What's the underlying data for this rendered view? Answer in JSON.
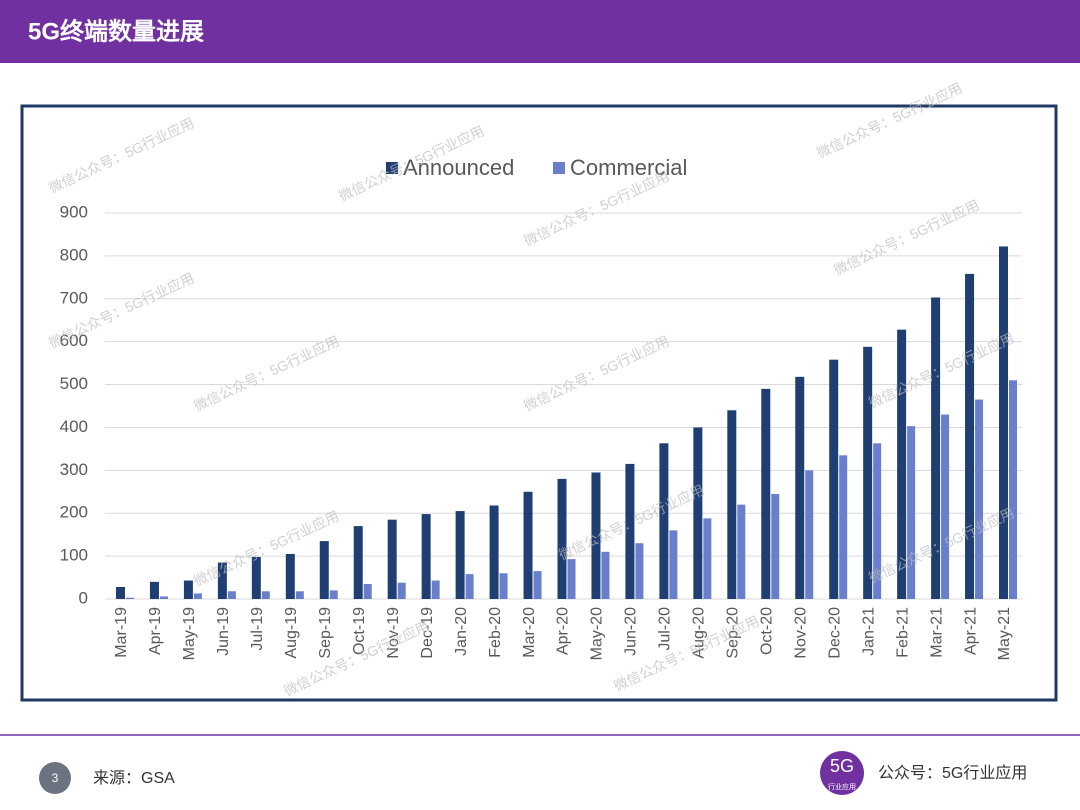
{
  "header": {
    "title": "5G终端数量进展"
  },
  "footer": {
    "page": "3",
    "source": "来源：GSA",
    "logo_big": "5G",
    "logo_small": "行业应用",
    "account": "公众号：5G行业应用"
  },
  "watermark": "微信公众号：5G行业应用",
  "chart_data": {
    "type": "bar",
    "categories": [
      "Mar-19",
      "Apr-19",
      "May-19",
      "Jun-19",
      "Jul-19",
      "Aug-19",
      "Sep-19",
      "Oct-19",
      "Nov-19",
      "Dec-19",
      "Jan-20",
      "Feb-20",
      "Mar-20",
      "Apr-20",
      "May-20",
      "Jun-20",
      "Jul-20",
      "Aug-20",
      "Sep-20",
      "Oct-20",
      "Nov-20",
      "Dec-20",
      "Jan-21",
      "Feb-21",
      "Mar-21",
      "Apr-21",
      "May-21"
    ],
    "series": [
      {
        "name": "Announced",
        "color": "#1f3f73",
        "values": [
          28,
          40,
          43,
          85,
          98,
          105,
          135,
          170,
          185,
          198,
          205,
          218,
          250,
          280,
          295,
          315,
          363,
          400,
          440,
          490,
          518,
          558,
          588,
          628,
          703,
          758,
          822
        ]
      },
      {
        "name": "Commercial",
        "color": "#6a7fcc",
        "values": [
          3,
          6,
          13,
          18,
          18,
          18,
          20,
          35,
          38,
          43,
          58,
          60,
          65,
          93,
          110,
          130,
          160,
          188,
          220,
          245,
          300,
          335,
          363,
          403,
          430,
          465,
          510
        ]
      }
    ],
    "ylim": [
      0,
      900
    ],
    "yticks": [
      0,
      100,
      200,
      300,
      400,
      500,
      600,
      700,
      800,
      900
    ],
    "grid": true,
    "legend": "top"
  }
}
